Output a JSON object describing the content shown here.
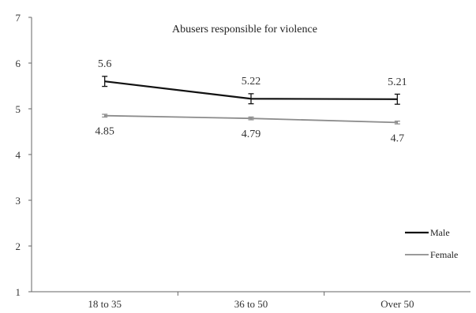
{
  "chart_data": {
    "type": "line",
    "title": "Abusers responsible for violence",
    "xlabel": "",
    "ylabel": "",
    "categories": [
      "18 to 35",
      "36 to 50",
      "Over 50"
    ],
    "ylim": [
      1,
      7
    ],
    "yticks": [
      "1",
      "2",
      "3",
      "4",
      "5",
      "6",
      "7"
    ],
    "legend_position": "bottom-right",
    "series": [
      {
        "name": "Male",
        "values": [
          5.6,
          5.22,
          5.21
        ],
        "labels": [
          "5.6",
          "5.22",
          "5.21"
        ],
        "error": [
          0.11,
          0.11,
          0.11
        ],
        "color": "#111111"
      },
      {
        "name": "Female",
        "values": [
          4.85,
          4.79,
          4.7
        ],
        "labels": [
          "4.85",
          "4.79",
          "4.7"
        ],
        "error": [
          0.03,
          0.03,
          0.03
        ],
        "color": "#8c8c8c"
      }
    ]
  }
}
